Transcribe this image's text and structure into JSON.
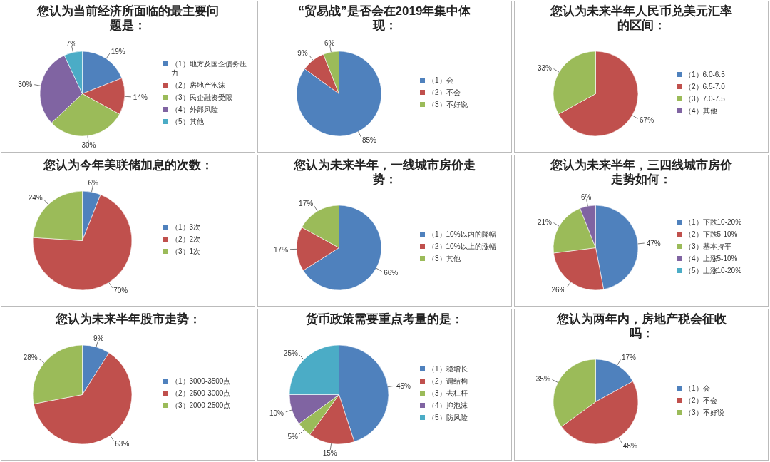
{
  "chart_data": [
    {
      "type": "pie",
      "title": "您认为当前经济所面临的最主要问题是：",
      "categories": [
        "（1）地方及国企债务压力",
        "（2）房地产泡沫",
        "（3）民企融资受限",
        "（4）外部风险",
        "（5）其他"
      ],
      "values": [
        19,
        14,
        30,
        30,
        7
      ],
      "value_labels": [
        "19%",
        "14%",
        "30%",
        "30%",
        "7%"
      ],
      "colors": [
        "#4f81bd",
        "#c0504d",
        "#9bbb59",
        "#8064a2",
        "#4bacc6"
      ],
      "legend": "right"
    },
    {
      "type": "pie",
      "title": "“贸易战”是否会在2019年集中体现：",
      "categories": [
        "（1）会",
        "（2）不会",
        "（3）不好说"
      ],
      "values": [
        85,
        9,
        6
      ],
      "value_labels": [
        "85%",
        "9%",
        "6%"
      ],
      "colors": [
        "#4f81bd",
        "#c0504d",
        "#9bbb59"
      ],
      "legend": "right"
    },
    {
      "type": "pie",
      "title": "您认为未来半年人民币兑美元汇率的区间：",
      "categories": [
        "（1）6.0-6.5",
        "（2）6.5-7.0",
        "（3）7.0-7.5",
        "（4）其他"
      ],
      "values": [
        0,
        67,
        33,
        0
      ],
      "value_labels": [
        null,
        "67%",
        "33%",
        null
      ],
      "colors": [
        "#4f81bd",
        "#c0504d",
        "#9bbb59",
        "#8064a2"
      ],
      "legend": "right"
    },
    {
      "type": "pie",
      "title": "您认为今年美联储加息的次数：",
      "categories": [
        "（1）3次",
        "（2）2次",
        "（3）1次"
      ],
      "values": [
        6,
        70,
        24
      ],
      "value_labels": [
        "6%",
        "70%",
        "24%"
      ],
      "colors": [
        "#4f81bd",
        "#c0504d",
        "#9bbb59"
      ],
      "legend": "right"
    },
    {
      "type": "pie",
      "title": "您认为未来半年，一线城市房价走势：",
      "categories": [
        "（1）10%以内的降幅",
        "（2）10%以上的涨幅",
        "（3）其他"
      ],
      "values": [
        66,
        17,
        17
      ],
      "value_labels": [
        "66%",
        "17%",
        "17%"
      ],
      "colors": [
        "#4f81bd",
        "#c0504d",
        "#9bbb59"
      ],
      "legend": "right"
    },
    {
      "type": "pie",
      "title": "您认为未来半年，三四线城市房价走势如何：",
      "categories": [
        "（1）下跌10-20%",
        "（2）下跌5-10%",
        "（3）基本持平",
        "（4）上涨5-10%",
        "（5）上涨10-20%"
      ],
      "values": [
        47,
        26,
        21,
        6,
        0
      ],
      "value_labels": [
        "47%",
        "26%",
        "21%",
        "6%",
        null
      ],
      "colors": [
        "#4f81bd",
        "#c0504d",
        "#9bbb59",
        "#8064a2",
        "#4bacc6"
      ],
      "legend": "right"
    },
    {
      "type": "pie",
      "title": "您认为未来半年股市走势：",
      "categories": [
        "（1）3000-3500点",
        "（2）2500-3000点",
        "（3）2000-2500点"
      ],
      "values": [
        9,
        63,
        28
      ],
      "value_labels": [
        "9%",
        "63%",
        "28%"
      ],
      "colors": [
        "#4f81bd",
        "#c0504d",
        "#9bbb59"
      ],
      "legend": "right"
    },
    {
      "type": "pie",
      "title": "货币政策需要重点考量的是：",
      "categories": [
        "（1）稳增长",
        "（2）调结构",
        "（3）去杠杆",
        "（4）抑泡沫",
        "（5）防风险"
      ],
      "values": [
        45,
        15,
        5,
        10,
        25
      ],
      "value_labels": [
        "45%",
        "15%",
        "5%",
        "10%",
        "25%"
      ],
      "colors": [
        "#4f81bd",
        "#c0504d",
        "#9bbb59",
        "#8064a2",
        "#4bacc6"
      ],
      "legend": "right"
    },
    {
      "type": "pie",
      "title": "您认为两年内，房地产税会征收吗：",
      "categories": [
        "（1）会",
        "（2）不会",
        "（3）不好说"
      ],
      "values": [
        17,
        48,
        35
      ],
      "value_labels": [
        "17%",
        "48%",
        "35%"
      ],
      "colors": [
        "#4f81bd",
        "#c0504d",
        "#9bbb59"
      ],
      "legend": "right"
    }
  ]
}
